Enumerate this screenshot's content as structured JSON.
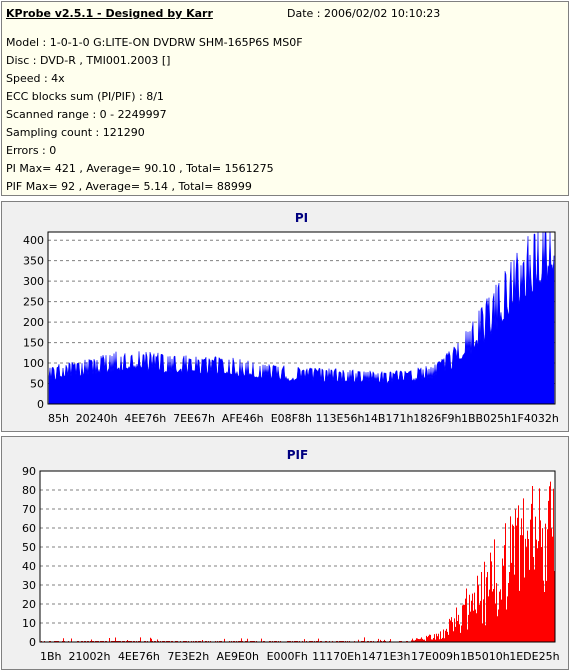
{
  "header": {
    "title": "KProbe v2.5.1 - Designed by Karr",
    "date": "Date : 2006/02/02 10:10:23",
    "lines": [
      "Model : 1-0-1-0 G:LITE-ON DVDRW SHM-165P6S MS0F",
      "Disc : DVD-R , TMI001.2003 []",
      "Speed : 4x",
      "ECC blocks sum (PI/PIF) : 8/1",
      "Scanned range : 0 - 2249997",
      "Sampling count : 121290",
      "Errors : 0",
      "PI Max= 421 , Average= 90.10 , Total= 1561275",
      "PIF Max= 92 , Average= 5.14 , Total= 88999"
    ]
  },
  "chart_data": [
    {
      "type": "area",
      "title": "PI",
      "color": "#0000ff",
      "ylim": [
        0,
        420
      ],
      "yticks": [
        0,
        50,
        100,
        150,
        200,
        250,
        300,
        350,
        400
      ],
      "xtick_labels": [
        "85h",
        "20240h",
        "4EE76h",
        "7EE67h",
        "AFE46h",
        "E08F8h",
        "113E56h",
        "14B171h",
        "1826F9h",
        "1BB025h",
        "1F4032h"
      ],
      "xlim_fraction": [
        0,
        1
      ],
      "profile": [
        [
          0,
          75
        ],
        [
          0.03,
          80
        ],
        [
          0.08,
          90
        ],
        [
          0.12,
          102
        ],
        [
          0.18,
          108
        ],
        [
          0.22,
          100
        ],
        [
          0.3,
          95
        ],
        [
          0.36,
          92
        ],
        [
          0.42,
          82
        ],
        [
          0.47,
          75
        ],
        [
          0.52,
          72
        ],
        [
          0.57,
          70
        ],
        [
          0.62,
          67
        ],
        [
          0.67,
          64
        ],
        [
          0.72,
          70
        ],
        [
          0.76,
          78
        ],
        [
          0.8,
          110
        ],
        [
          0.84,
          165
        ],
        [
          0.88,
          225
        ],
        [
          0.92,
          285
        ],
        [
          0.95,
          330
        ],
        [
          0.98,
          370
        ],
        [
          1.0,
          400
        ]
      ],
      "max": 421,
      "grid": true
    },
    {
      "type": "bar",
      "title": "PIF",
      "color": "#ff0000",
      "ylim": [
        0,
        90
      ],
      "yticks": [
        0,
        10,
        20,
        30,
        40,
        50,
        60,
        70,
        80,
        90
      ],
      "xtick_labels": [
        "1Bh",
        "21002h",
        "4EE76h",
        "7E3E2h",
        "AE9E0h",
        "E000Fh",
        "11170Eh",
        "1471E3h",
        "17E009h",
        "1B5010h",
        "1EDE25h"
      ],
      "profile": [
        [
          0,
          0.5
        ],
        [
          0.7,
          0.5
        ],
        [
          0.72,
          1
        ],
        [
          0.75,
          2
        ],
        [
          0.78,
          4
        ],
        [
          0.8,
          10
        ],
        [
          0.83,
          18
        ],
        [
          0.86,
          28
        ],
        [
          0.9,
          38
        ],
        [
          0.93,
          45
        ],
        [
          0.96,
          52
        ],
        [
          1.0,
          60
        ]
      ],
      "max": 92,
      "grid": true
    }
  ]
}
